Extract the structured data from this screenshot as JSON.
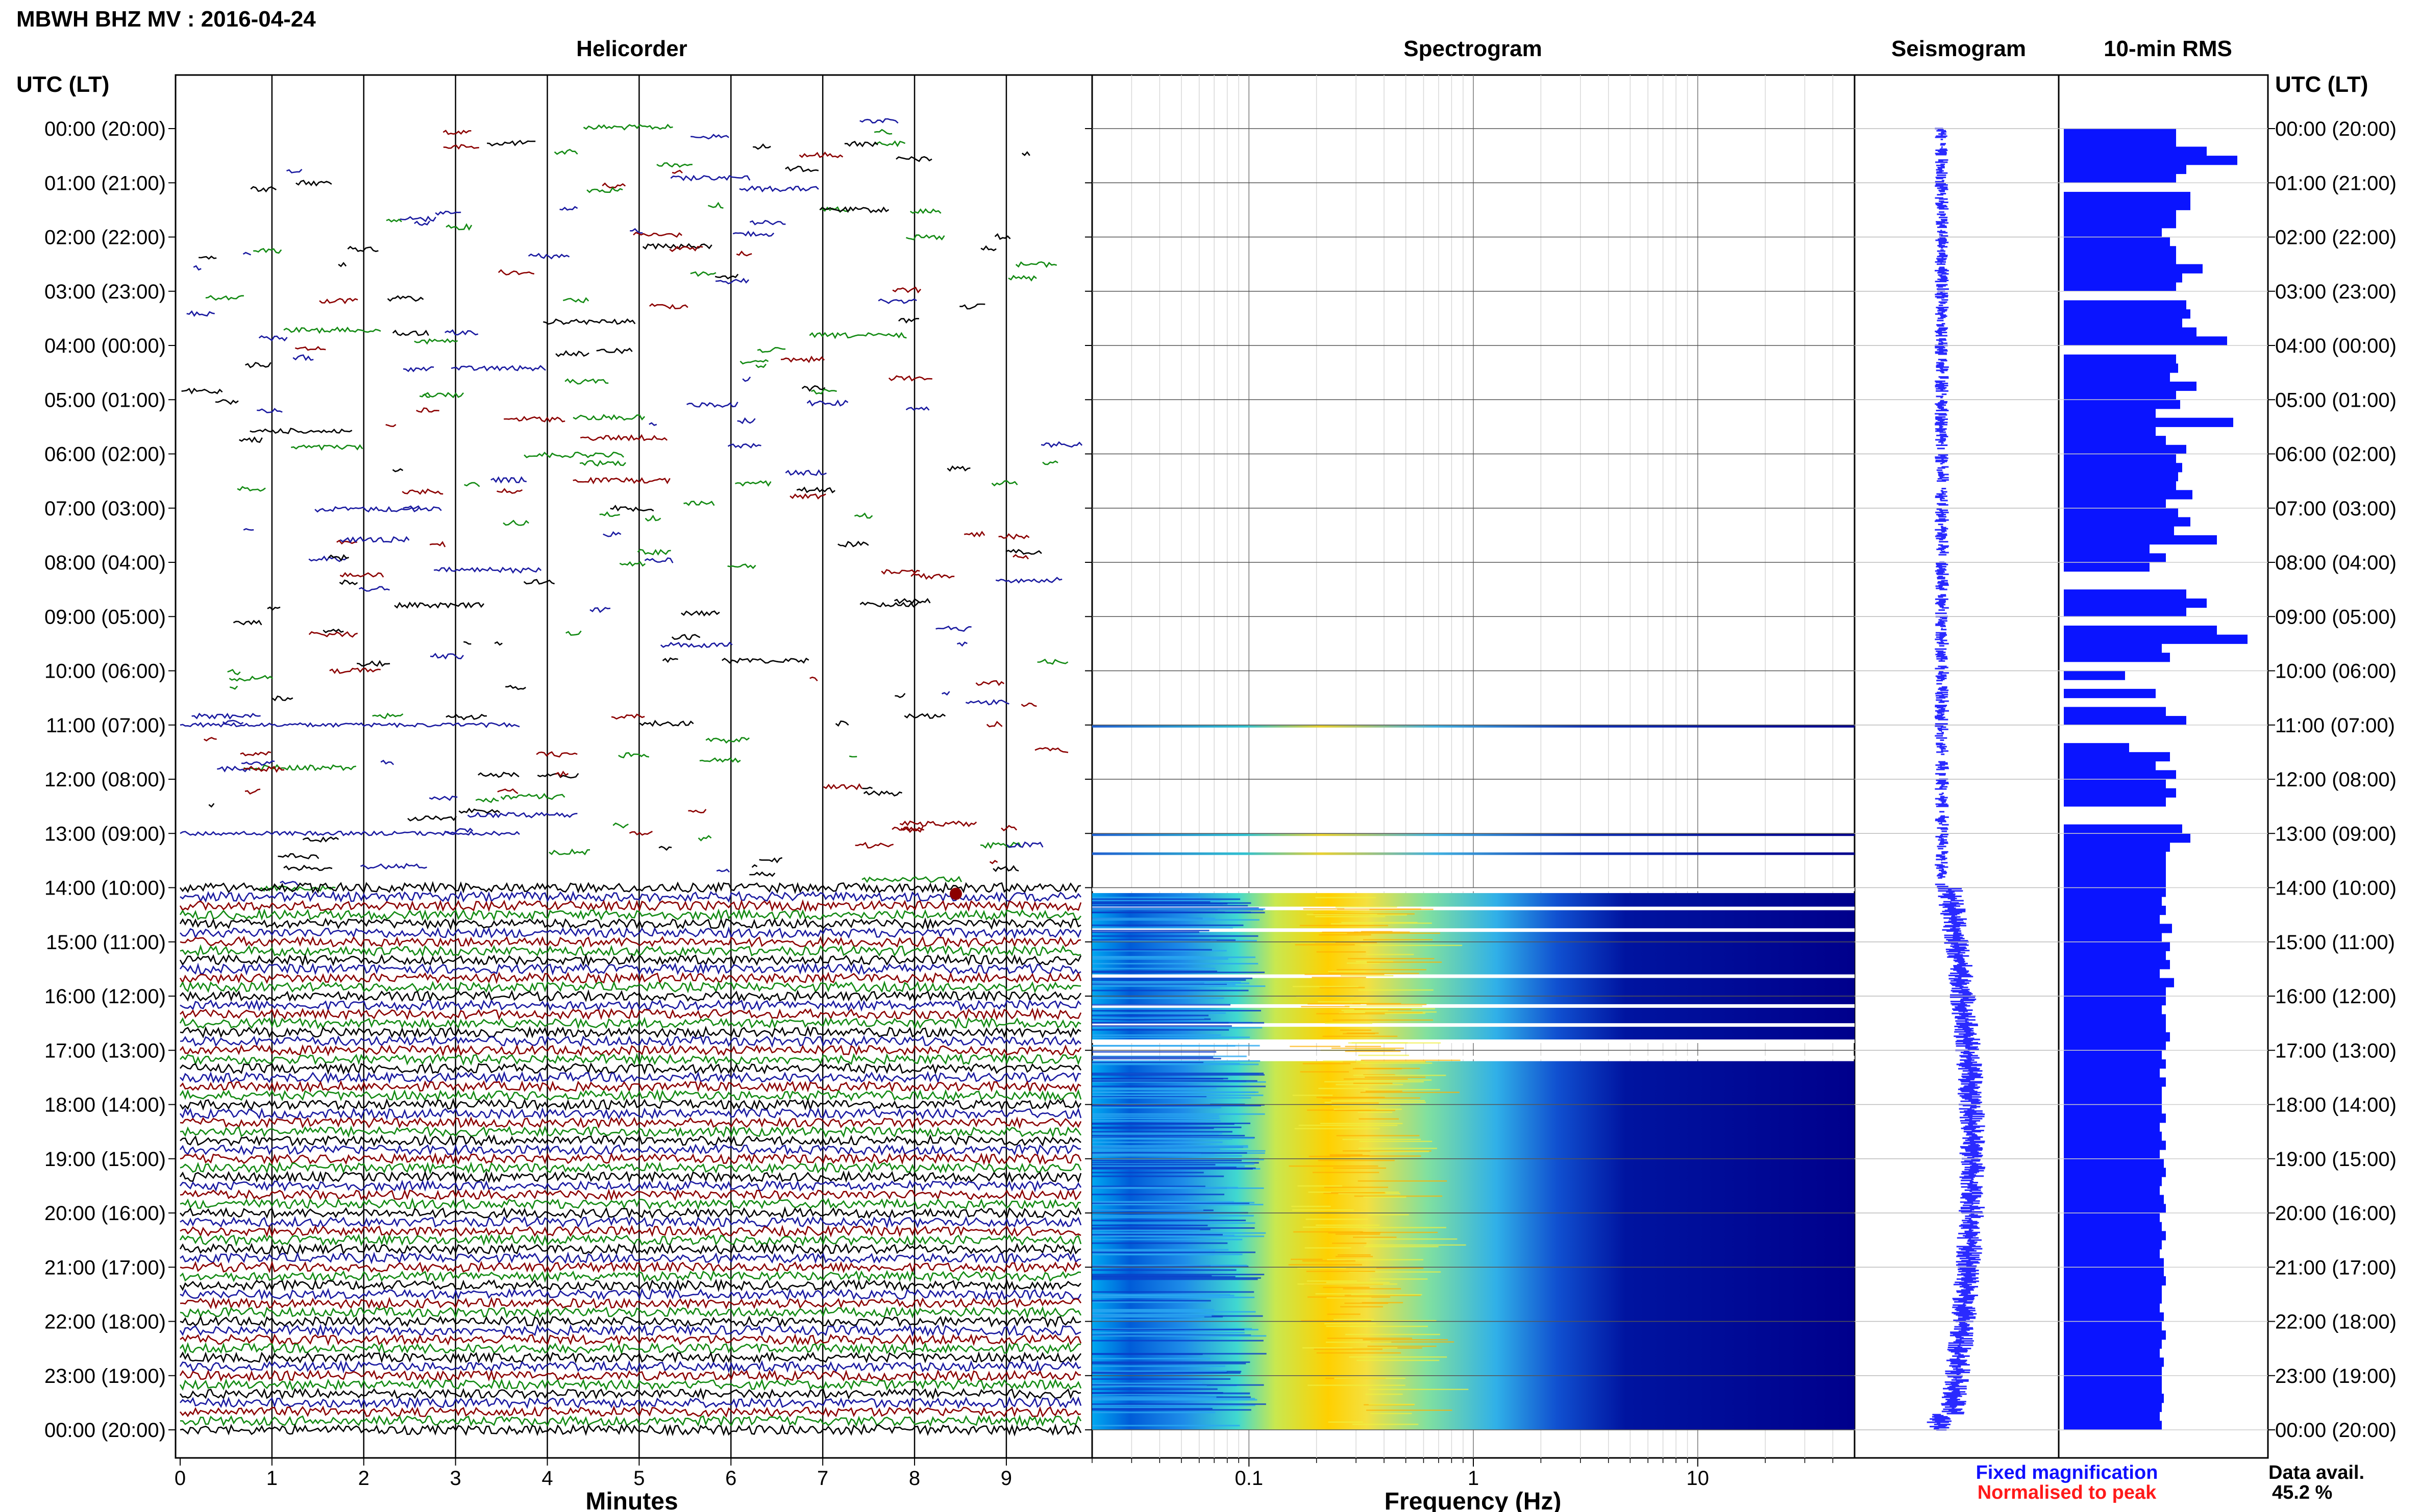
{
  "station_title": "MBWH BHZ MV : 2016-04-24",
  "time_axis_label": "UTC (LT)",
  "time_ticks": [
    "00:00 (20:00)",
    "01:00 (21:00)",
    "02:00 (22:00)",
    "03:00 (23:00)",
    "04:00 (00:00)",
    "05:00 (01:00)",
    "06:00 (02:00)",
    "07:00 (03:00)",
    "08:00 (04:00)",
    "09:00 (05:00)",
    "10:00 (06:00)",
    "11:00 (07:00)",
    "12:00 (08:00)",
    "13:00 (09:00)",
    "14:00 (10:00)",
    "15:00 (11:00)",
    "16:00 (12:00)",
    "17:00 (13:00)",
    "18:00 (14:00)",
    "19:00 (15:00)",
    "20:00 (16:00)",
    "21:00 (17:00)",
    "22:00 (18:00)",
    "23:00 (19:00)",
    "00:00 (20:00)"
  ],
  "legend": {
    "fixed": "Fixed magnification",
    "fixed_color": "#1010ff",
    "normalised": "Normalised to peak",
    "normalised_color": "#ff1a1a",
    "avail_label": "Data avail.",
    "avail_value": "45.2 %"
  },
  "colors": {
    "helicorder_traces": [
      "#000000",
      "#1a1aa0",
      "#8b0000",
      "#138a13"
    ],
    "rms_bar": "#0a14ff",
    "spectrogram_low": "#00008c",
    "spectrogram_high": "#ffd400"
  },
  "chart_data": [
    {
      "type": "line",
      "title": "Helicorder",
      "xlabel": "Minutes",
      "xlim": [
        0,
        10
      ],
      "x_ticks": [
        "0",
        "1",
        "2",
        "3",
        "4",
        "5",
        "6",
        "7",
        "8",
        "9"
      ],
      "continuous_data_from": "14:00",
      "sparse_data_before": "14:00"
    },
    {
      "type": "heatmap",
      "title": "Spectrogram",
      "xlabel": "Frequency (Hz)",
      "x_scale": "log",
      "xlim": [
        0.02,
        50
      ],
      "x_ticks": [
        "0.1",
        "1",
        "10"
      ],
      "x_tick_values": [
        0.1,
        1,
        10
      ],
      "peak_frequency_hz": 0.28,
      "data_rows_hours": [
        [
          11.0,
          11.03
        ],
        [
          13.0,
          13.03
        ],
        [
          13.35,
          13.37
        ],
        [
          14.1,
          16.8
        ],
        [
          17.2,
          24.0
        ]
      ]
    },
    {
      "type": "line",
      "title": "Seismogram"
    },
    {
      "type": "bar",
      "title": "10-min RMS",
      "orientation": "horizontal",
      "bin_minutes": 10,
      "values": [
        0.55,
        0.55,
        0.7,
        0.85,
        0.6,
        0.55,
        0.0,
        0.62,
        0.62,
        0.55,
        0.55,
        0.48,
        0.52,
        0.55,
        0.55,
        0.68,
        0.58,
        0.55,
        0.0,
        0.6,
        0.62,
        0.58,
        0.65,
        0.8,
        0.0,
        0.55,
        0.56,
        0.52,
        0.65,
        0.55,
        0.57,
        0.45,
        0.83,
        0.45,
        0.5,
        0.6,
        0.55,
        0.58,
        0.56,
        0.55,
        0.63,
        0.5,
        0.56,
        0.62,
        0.54,
        0.75,
        0.42,
        0.5,
        0.42,
        0.0,
        0.0,
        0.6,
        0.7,
        0.6,
        0.0,
        0.75,
        0.9,
        0.48,
        0.52,
        0.0,
        0.3,
        0.0,
        0.45,
        0.0,
        0.5,
        0.6,
        0.0,
        0.0,
        0.32,
        0.52,
        0.45,
        0.55,
        0.5,
        0.55,
        0.5,
        0.0,
        0.0,
        0.58,
        0.62,
        0.52,
        0.5,
        0.5,
        0.5,
        0.5,
        0.5,
        0.48,
        0.5,
        0.47,
        0.53,
        0.48,
        0.52,
        0.5,
        0.52,
        0.47,
        0.54,
        0.5,
        0.5,
        0.48,
        0.5,
        0.5,
        0.52,
        0.5,
        0.48,
        0.5,
        0.47,
        0.5,
        0.48,
        0.48,
        0.48,
        0.5,
        0.47,
        0.48,
        0.5,
        0.47,
        0.49,
        0.5,
        0.48,
        0.47,
        0.49,
        0.5,
        0.47,
        0.48,
        0.5,
        0.48,
        0.47,
        0.49,
        0.49,
        0.5,
        0.48,
        0.48,
        0.47,
        0.49,
        0.48,
        0.5,
        0.48,
        0.47,
        0.49,
        0.48,
        0.48,
        0.48,
        0.49,
        0.48,
        0.47,
        0.48
      ]
    }
  ]
}
